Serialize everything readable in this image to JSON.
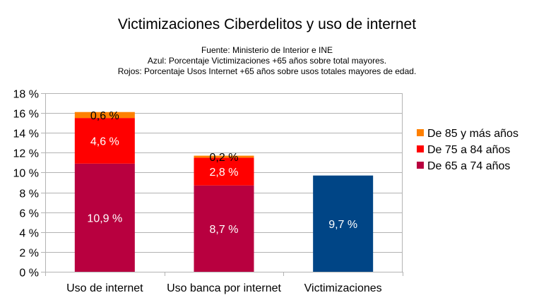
{
  "chart_data": {
    "type": "bar",
    "stacked": true,
    "title": "Victimizaciones Ciberdelitos y uso de internet",
    "subtitle_lines": [
      "Fuente: Ministerio de Interior e INE",
      "Azul: Porcentaje Victimizaciones +65 años sobre total mayores.",
      "Rojos: Porcentaje Usos Internet +65 años sobre usos totales mayores de edad."
    ],
    "categories": [
      "Uso de internet",
      "Uso banca por internet",
      "Victimizaciones"
    ],
    "series": [
      {
        "name": "De 65 a 74 años",
        "color": "#b8003f",
        "values": [
          10.9,
          8.7,
          null
        ],
        "labels": [
          "10,9 %",
          "8,7 %",
          ""
        ]
      },
      {
        "name": "De 75 a 84 años",
        "color": "#ff0000",
        "values": [
          4.6,
          2.8,
          null
        ],
        "labels": [
          "4,6 %",
          "2,8 %",
          ""
        ]
      },
      {
        "name": "De 85 y más años",
        "color": "#ff8000",
        "values": [
          0.6,
          0.2,
          null
        ],
        "labels": [
          "0,6 %",
          "0,2 %",
          ""
        ]
      },
      {
        "name": "",
        "color": "#004586",
        "values": [
          null,
          null,
          9.7
        ],
        "labels": [
          "",
          "",
          "9,7 %"
        ]
      }
    ],
    "legend": [
      "De 85 y más años",
      "De 75 a 84 años",
      "De 65 a 74 años"
    ],
    "legend_position": "right",
    "ylim": [
      0,
      18
    ],
    "yticks": [
      "0 %",
      "2 %",
      "4 %",
      "6 %",
      "8 %",
      "10 %",
      "12 %",
      "14 %",
      "16 %",
      "18 %"
    ],
    "grid": true
  }
}
